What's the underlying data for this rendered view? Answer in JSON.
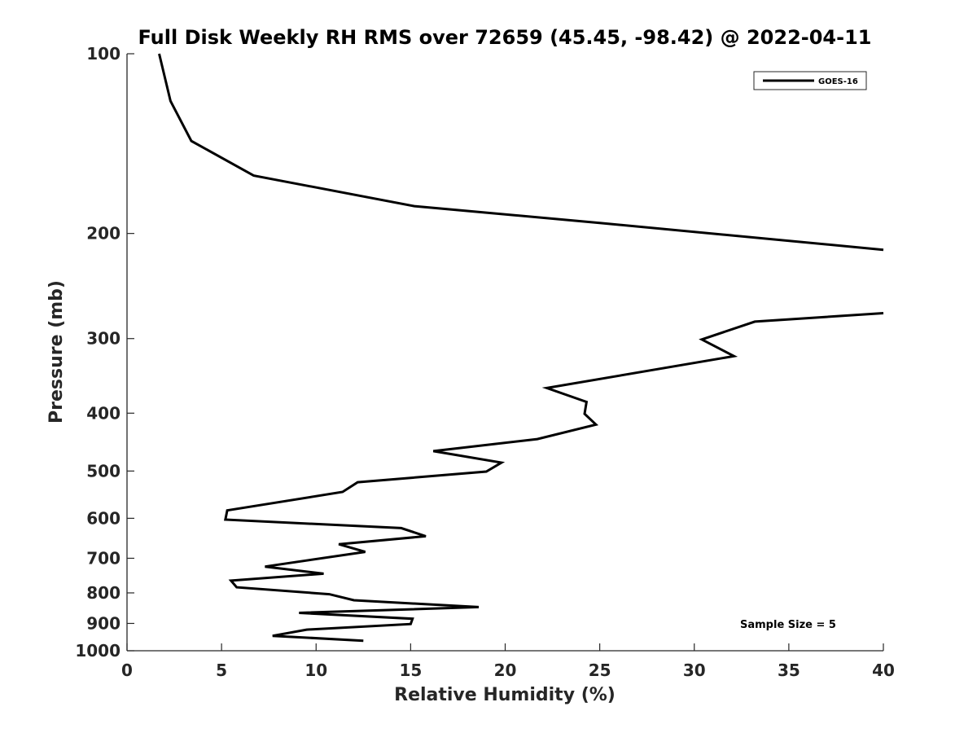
{
  "chart_data": {
    "type": "line",
    "title": "Full Disk Weekly RH RMS over 72659 (45.45, -98.42) @ 2022-04-11",
    "xlabel": "Relative Humidity (%)",
    "ylabel": "Pressure (mb)",
    "xlim": [
      0,
      40
    ],
    "ylim": [
      100,
      1000
    ],
    "y_scale": "log",
    "y_reversed": true,
    "grid": false,
    "legend_position": "top-right",
    "x_ticks": [
      "0",
      "5",
      "10",
      "15",
      "20",
      "25",
      "30",
      "35",
      "40"
    ],
    "y_ticks": [
      "100",
      "200",
      "300",
      "400",
      "500",
      "600",
      "700",
      "800",
      "900",
      "1000"
    ],
    "annotation": "Sample Size = 5",
    "series": [
      {
        "name": "GOES-16",
        "color": "#000000",
        "segments": [
          [
            {
              "x": 1.7,
              "y": 100
            },
            {
              "x": 2.3,
              "y": 120
            },
            {
              "x": 3.4,
              "y": 140
            },
            {
              "x": 6.7,
              "y": 160
            },
            {
              "x": 15.2,
              "y": 180
            },
            {
              "x": 25.0,
              "y": 192
            },
            {
              "x": 40.0,
              "y": 213
            }
          ],
          [
            {
              "x": 40.0,
              "y": 272
            },
            {
              "x": 33.2,
              "y": 281
            },
            {
              "x": 30.4,
              "y": 301
            },
            {
              "x": 32.1,
              "y": 321
            },
            {
              "x": 22.2,
              "y": 363
            },
            {
              "x": 24.3,
              "y": 383
            },
            {
              "x": 24.2,
              "y": 401
            },
            {
              "x": 24.8,
              "y": 418
            },
            {
              "x": 21.7,
              "y": 442
            },
            {
              "x": 16.2,
              "y": 463
            },
            {
              "x": 19.8,
              "y": 484
            },
            {
              "x": 19.0,
              "y": 501
            },
            {
              "x": 12.2,
              "y": 522
            },
            {
              "x": 11.4,
              "y": 542
            },
            {
              "x": 5.3,
              "y": 582
            },
            {
              "x": 5.2,
              "y": 603
            },
            {
              "x": 14.5,
              "y": 623
            },
            {
              "x": 15.8,
              "y": 643
            },
            {
              "x": 11.2,
              "y": 663
            },
            {
              "x": 12.6,
              "y": 683
            },
            {
              "x": 7.3,
              "y": 723
            },
            {
              "x": 10.4,
              "y": 743
            },
            {
              "x": 5.5,
              "y": 763
            },
            {
              "x": 5.8,
              "y": 783
            },
            {
              "x": 10.7,
              "y": 804
            },
            {
              "x": 12.0,
              "y": 823
            },
            {
              "x": 18.6,
              "y": 845
            },
            {
              "x": 9.1,
              "y": 864
            },
            {
              "x": 15.1,
              "y": 884
            },
            {
              "x": 15.0,
              "y": 902
            },
            {
              "x": 9.5,
              "y": 922
            },
            {
              "x": 7.7,
              "y": 944
            },
            {
              "x": 12.5,
              "y": 962
            }
          ]
        ]
      }
    ]
  }
}
